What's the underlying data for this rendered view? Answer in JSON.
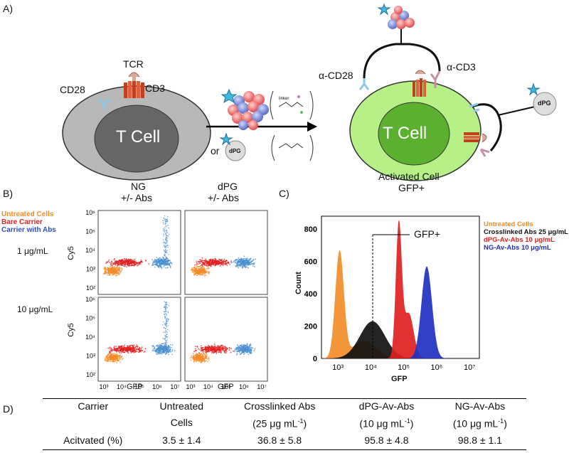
{
  "panels": {
    "a": "A)",
    "b": "B)",
    "c": "C)",
    "d": "D)"
  },
  "panel_a": {
    "tcell_label": "T Cell",
    "tcr": "TCR",
    "cd28": "CD28",
    "cd3": "CD3",
    "or_text": "or",
    "dpg_label": "dPG",
    "linker_text": "linker",
    "alpha_cd28": "α-CD28",
    "alpha_cd3": "α-CD3",
    "activated_tcell": "T Cell",
    "activated_line1": "Activated Cell",
    "activated_line2": "GFP+",
    "dpg_right": "dPG"
  },
  "panel_b": {
    "col_ng_1": "NG",
    "col_ng_2": "+/- Abs",
    "col_dpg_1": "dPG",
    "col_dpg_2": "+/- Abs",
    "legend": [
      {
        "label": "Untreated Cells",
        "color": "#f28c28"
      },
      {
        "label": "Bare Carrier",
        "color": "#e02020"
      },
      {
        "label": "Carrier with Abs",
        "color": "#3050c0"
      }
    ],
    "row1": "1 μg/mL",
    "row2": "10 μg/mL",
    "ylabel": "Cy5",
    "xlabel": "GFP",
    "yticks": [
      "10²",
      "10³",
      "10⁴",
      "10⁵",
      "10⁶"
    ],
    "xticks": [
      "10³",
      "10⁴",
      "10⁵",
      "10⁶",
      "10⁷"
    ]
  },
  "panel_c": {
    "ylabel": "Count",
    "xlabel": "GFP",
    "gate_label": "GFP+",
    "yticks": [
      "0",
      "200",
      "400",
      "600",
      "800"
    ],
    "xticks": [
      "10³",
      "10⁴",
      "10⁵",
      "10⁶",
      "10⁷"
    ],
    "legend": [
      {
        "label": "Untreated Cells",
        "color": "#f28c28"
      },
      {
        "label": "Crosslinked Abs 25 μg/mL",
        "color": "#111111"
      },
      {
        "label": "dPG-Av-Abs 10 μg/mL",
        "color": "#e02020"
      },
      {
        "label": "NG-Av-Abs 10 μg/mL",
        "color": "#2030c0"
      }
    ]
  },
  "table": {
    "header": [
      "Carrier",
      "Untreated",
      "Crosslinked Abs",
      "dPG-Av-Abs",
      "NG-Av-Abs"
    ],
    "header2": [
      "",
      "Cells",
      "(25 μg mL",
      "(10 μg mL",
      "(10 μg mL"
    ],
    "unit_sup": "-1",
    "row_label": "Acitvated (%)",
    "values": [
      "3.5 ± 1.4",
      "36.8 ± 5.8",
      "95.8 ± 4.8",
      "98.8 ± 1.1"
    ]
  }
}
